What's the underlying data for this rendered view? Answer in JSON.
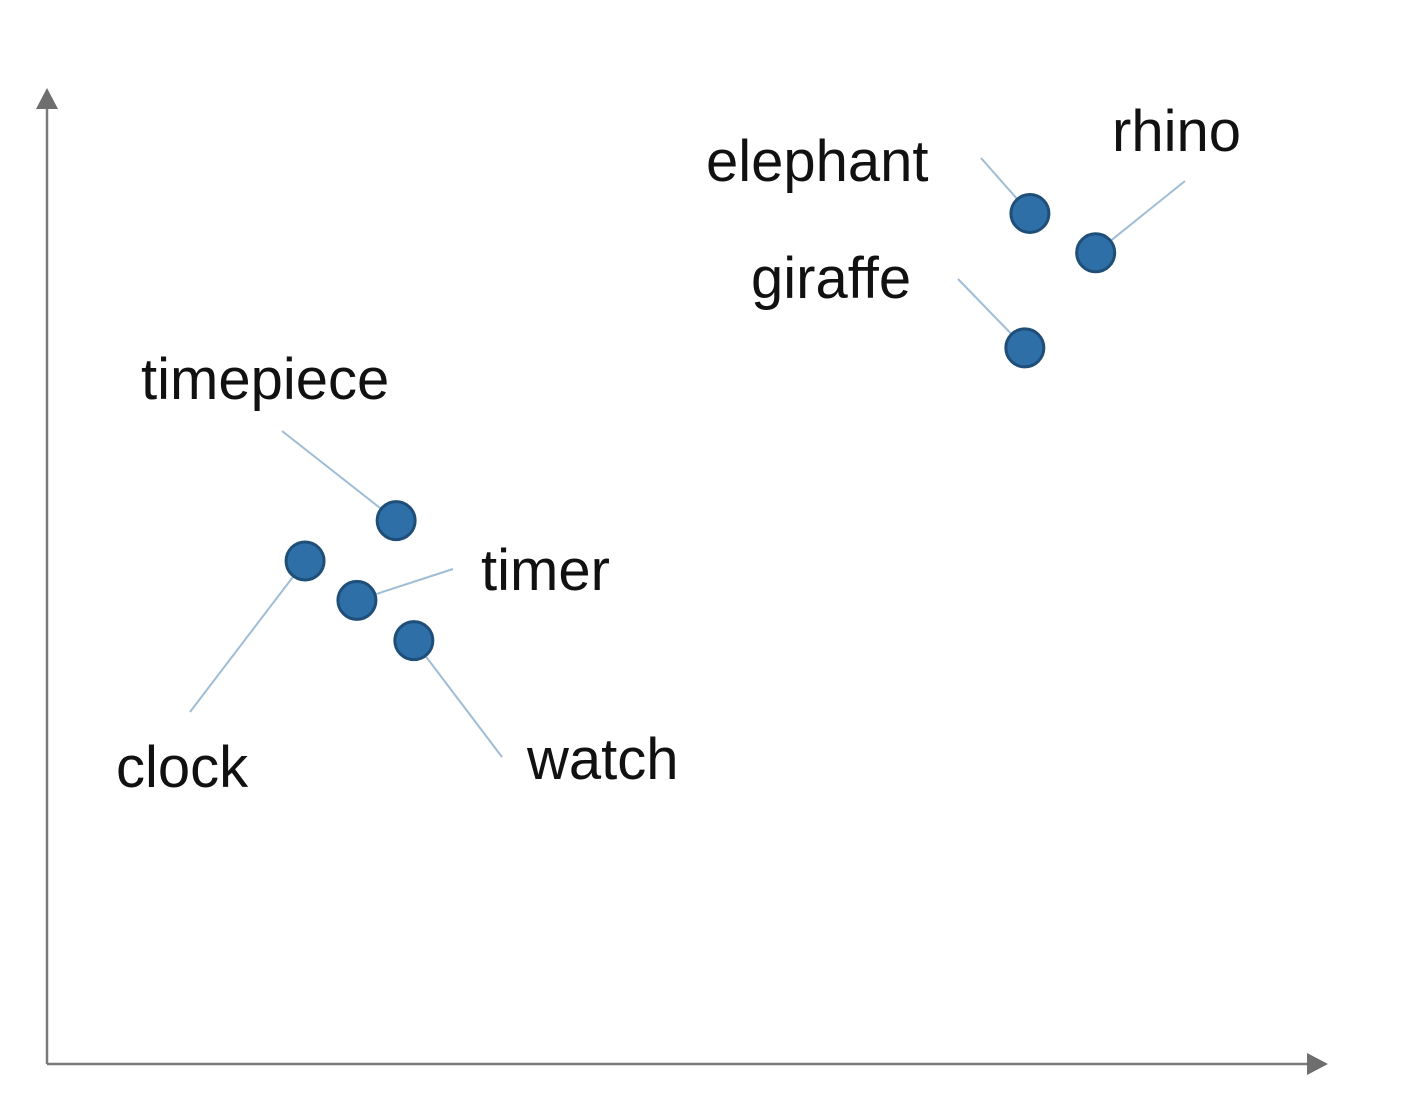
{
  "chart_data": {
    "type": "scatter",
    "title": "",
    "xlabel": "",
    "ylabel": "",
    "xlim": [
      0,
      100
    ],
    "ylim": [
      0,
      100
    ],
    "grid": false,
    "legend": "none",
    "marker_color": "#2e6fa8",
    "points": [
      {
        "label": "elephant",
        "x": 77.7,
        "y": 88.6
      },
      {
        "label": "rhino",
        "x": 82.9,
        "y": 84.5
      },
      {
        "label": "giraffe",
        "x": 77.3,
        "y": 74.6
      },
      {
        "label": "timepiece",
        "x": 27.6,
        "y": 56.6
      },
      {
        "label": "clock",
        "x": 20.4,
        "y": 52.4
      },
      {
        "label": "timer",
        "x": 24.5,
        "y": 48.3
      },
      {
        "label": "watch",
        "x": 29.0,
        "y": 44.1
      }
    ]
  }
}
